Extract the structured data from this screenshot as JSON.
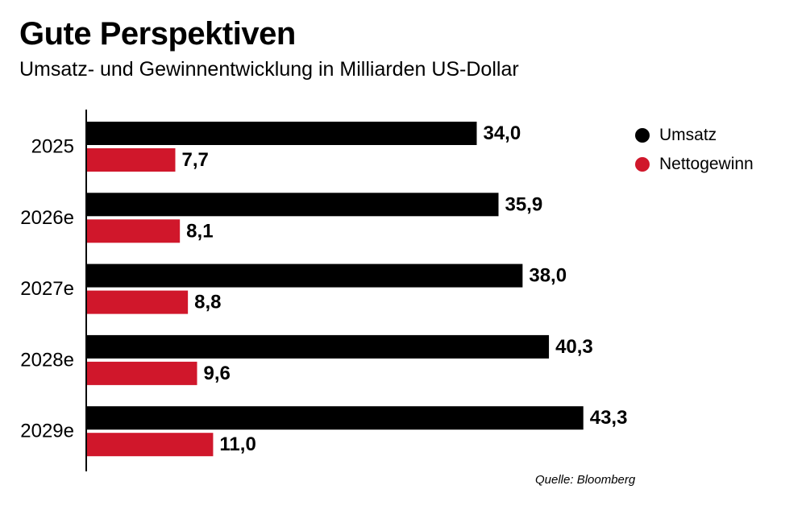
{
  "header": {
    "title": "Gute Perspektiven",
    "subtitle": "Umsatz- und Gewinnentwicklung in Milliarden US-Dollar"
  },
  "source": "Quelle: Bloomberg",
  "colors": {
    "umsatz": "#000000",
    "nettogewinn": "#d0172b"
  },
  "chart_data": {
    "type": "bar",
    "orientation": "horizontal",
    "categories": [
      "2025",
      "2026e",
      "2027e",
      "2028e",
      "2029e"
    ],
    "series": [
      {
        "name": "Umsatz",
        "values": [
          34.0,
          35.9,
          38.0,
          40.3,
          43.3
        ],
        "labels": [
          "34,0",
          "35,9",
          "38,0",
          "40,3",
          "43,3"
        ]
      },
      {
        "name": "Nettogewinn",
        "values": [
          7.7,
          8.1,
          8.8,
          9.6,
          11.0
        ],
        "labels": [
          "7,7",
          "8,1",
          "8,8",
          "9,6",
          "11,0"
        ]
      }
    ],
    "title": "Gute Perspektiven",
    "xlabel": "",
    "ylabel": "",
    "xlim": [
      0,
      50
    ],
    "grid": false,
    "legend_position": "top-right"
  }
}
